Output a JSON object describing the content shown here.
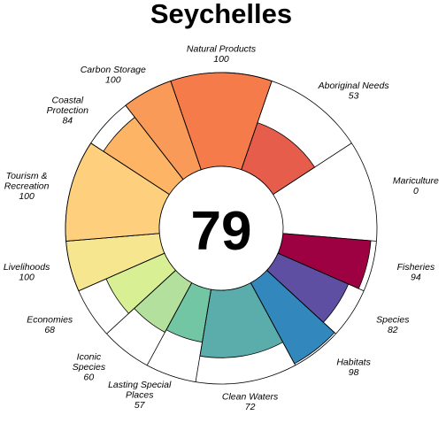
{
  "chart_data": {
    "type": "flower",
    "title": "Seychelles",
    "center_score": 79,
    "ylim": [
      0,
      100
    ],
    "petals": [
      {
        "name": "Natural Products",
        "value": 100,
        "weight": 1,
        "color": "#f67b4b"
      },
      {
        "name": "Aboriginal Needs",
        "value": 53,
        "weight": 1,
        "color": "#e65d4c"
      },
      {
        "name": "Mariculture",
        "value": 0,
        "weight": 1,
        "color": "#dc4b4a"
      },
      {
        "name": "Fisheries",
        "value": 94,
        "weight": 0.5,
        "color": "#9e0142"
      },
      {
        "name": "Species",
        "value": 82,
        "weight": 0.5,
        "color": "#5e4fa2"
      },
      {
        "name": "Habitats",
        "value": 98,
        "weight": 0.5,
        "color": "#3288bd"
      },
      {
        "name": "Clean Waters",
        "value": 72,
        "weight": 1,
        "color": "#5aadaa"
      },
      {
        "name": "Lasting Special Places",
        "value": 57,
        "weight": 0.5,
        "color": "#72c6a4"
      },
      {
        "name": "Iconic Species",
        "value": 60,
        "weight": 0.5,
        "color": "#b3e09c"
      },
      {
        "name": "Economies",
        "value": 68,
        "weight": 0.5,
        "color": "#d9ef94"
      },
      {
        "name": "Livelihoods",
        "value": 100,
        "weight": 0.5,
        "color": "#f7e690"
      },
      {
        "name": "Tourism & Recreation",
        "value": 100,
        "weight": 1,
        "color": "#fecf7c"
      },
      {
        "name": "Coastal Protection",
        "value": 84,
        "weight": 0.5,
        "color": "#fdb465"
      },
      {
        "name": "Carbon Storage",
        "value": 100,
        "weight": 0.5,
        "color": "#fa9a58"
      }
    ],
    "labels": [
      {
        "lines": [
          "Natural Products"
        ],
        "value": "100"
      },
      {
        "lines": [
          "Aboriginal Needs"
        ],
        "value": "53"
      },
      {
        "lines": [
          "Mariculture"
        ],
        "value": "0"
      },
      {
        "lines": [
          "Fisheries"
        ],
        "value": "94"
      },
      {
        "lines": [
          "Species"
        ],
        "value": "82"
      },
      {
        "lines": [
          "Habitats"
        ],
        "value": "98"
      },
      {
        "lines": [
          "Clean Waters"
        ],
        "value": "72"
      },
      {
        "lines": [
          "Lasting Special",
          "Places"
        ],
        "value": "57"
      },
      {
        "lines": [
          "Iconic",
          "Species"
        ],
        "value": "60"
      },
      {
        "lines": [
          "Economies"
        ],
        "value": "68"
      },
      {
        "lines": [
          "Livelihoods"
        ],
        "value": "100"
      },
      {
        "lines": [
          "Tourism &",
          "Recreation"
        ],
        "value": "100"
      },
      {
        "lines": [
          "Coastal",
          "Protection"
        ],
        "value": "84"
      },
      {
        "lines": [
          "Carbon Storage"
        ],
        "value": "100"
      }
    ]
  }
}
